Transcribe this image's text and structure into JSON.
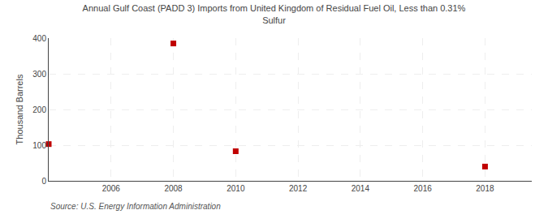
{
  "chart_data": {
    "type": "scatter",
    "title": "Annual Gulf Coast (PADD 3) Imports from United Kingdom of Residual Fuel Oil, Less than 0.31%\nSulfur",
    "ylabel": "Thousand Barrels",
    "annotations": [
      "Source: U.S. Energy Information Administration"
    ],
    "x": [
      2004,
      2008,
      2010,
      2018
    ],
    "values": [
      103,
      385,
      83,
      40
    ],
    "color": "#c00000",
    "marker": "square",
    "xlim": [
      2004,
      2019.5
    ],
    "ylim": [
      0,
      400
    ],
    "xticks": [
      2006,
      2008,
      2010,
      2012,
      2014,
      2016,
      2018
    ],
    "yticks": [
      0,
      100,
      200,
      300,
      400
    ],
    "grid": true
  }
}
